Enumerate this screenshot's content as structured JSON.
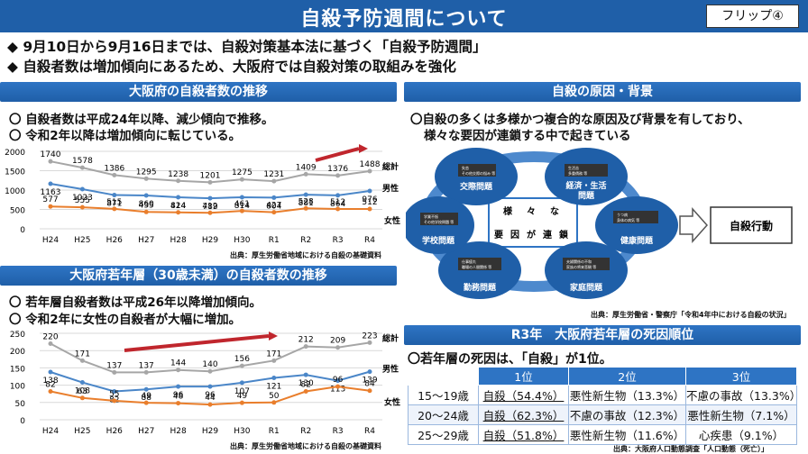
{
  "title": "自殺予防週間について",
  "flip_label": "フリップ④",
  "bullets": [
    "◆ 9月10日から9月16日までは、自殺対策基本法に基づく「自殺予防週間」",
    "◆ 自殺者数は増加傾向にあるため、大阪府では自殺対策の取組みを強化"
  ],
  "left_top": {
    "header": "大阪府の自殺者数の推移",
    "notes": [
      "〇 自殺者数は平成24年以降、減少傾向で推移。",
      "〇 令和2年以降は増加傾向に転じている。"
    ],
    "source": "出典：厚生労働省地域における自殺の基礎資料"
  },
  "left_bottom": {
    "header": "大阪府若年層（30歳未満）の自殺者数の推移",
    "notes": [
      "〇 若年層自殺者数は平成26年以降増加傾向。",
      "〇 令和2年に女性の自殺者が大幅に増加。"
    ],
    "source": "出典：厚生労働省地域における自殺の基礎資料"
  },
  "right_top": {
    "header": "自殺の原因・背景",
    "text1": "〇自殺の多くは多様かつ複合的な原因及び背景を有しており、",
    "text2": "様々な要因が連鎖する中で起きている",
    "nodes": [
      {
        "label": "交際問題",
        "items": [
          "失恋",
          "その他交際の悩み 等"
        ]
      },
      {
        "label": "経済・生活問題",
        "items": [
          "生活苦",
          "多重債務 等"
        ]
      },
      {
        "label": "健康問題",
        "items": [
          "うつ病",
          "身体の病気 等"
        ]
      },
      {
        "label": "家庭問題",
        "items": [
          "夫婦関係の不和",
          "家族の将来悲観 等"
        ]
      },
      {
        "label": "勤務問題",
        "items": [
          "仕事疲れ",
          "職場の人間関係 等"
        ]
      },
      {
        "label": "学校問題",
        "items": [
          "学業不振",
          "その他学校問題 等"
        ]
      }
    ],
    "center_chars": [
      "様",
      "々",
      "な",
      "要",
      "因",
      "が",
      "連",
      "鎖"
    ],
    "result": "自殺行動",
    "source": "出典：厚生労働省・警察庁「令和4年中における自殺の状況」"
  },
  "right_bottom": {
    "header": "R3年　大阪府若年層の死因順位",
    "note_prefix": "〇若年層の死因は、",
    "note_em": "「自殺」が1位。",
    "columns": [
      "",
      "1位",
      "2位",
      "3位"
    ],
    "rows": [
      [
        "15～19歳",
        "自殺（54.4%）",
        "悪性新生物（13.3%）",
        "不慮の事故（13.3%）"
      ],
      [
        "20～24歳",
        "自殺（62.3%）",
        "不慮の事故（12.3%）",
        "悪性新生物（7.1%）"
      ],
      [
        "25～29歳",
        "自殺（51.8%）",
        "悪性新生物（11.6%）",
        "心疾患（9.1%）"
      ]
    ],
    "source": "出典：大阪府人口動態調査「人口動態（死亡）」"
  },
  "chart_data": [
    {
      "type": "line",
      "categories": [
        "H24",
        "H25",
        "H26",
        "H27",
        "H28",
        "H29",
        "H30",
        "R1",
        "R2",
        "R3",
        "R4"
      ],
      "ylim": [
        0,
        2000
      ],
      "yticks": [
        0,
        500,
        1000,
        1500,
        2000
      ],
      "series": [
        {
          "name": "総計",
          "color": "#a6a6a6",
          "values": [
            1740,
            1578,
            1386,
            1295,
            1238,
            1201,
            1275,
            1231,
            1409,
            1376,
            1488
          ]
        },
        {
          "name": "男性",
          "color": "#4a86c8",
          "values": [
            1163,
            1023,
            871,
            860,
            814,
            789,
            814,
            804,
            881,
            864,
            976
          ]
        },
        {
          "name": "女性",
          "color": "#e97e2c",
          "values": [
            577,
            555,
            515,
            435,
            424,
            412,
            461,
            427,
            528,
            512,
            512
          ]
        }
      ]
    },
    {
      "type": "line",
      "categories": [
        "H24",
        "H25",
        "H26",
        "H27",
        "H28",
        "H29",
        "H30",
        "R1",
        "R2",
        "R3",
        "R4"
      ],
      "ylim": [
        0,
        250
      ],
      "yticks": [
        0,
        50,
        100,
        150,
        200,
        250
      ],
      "series": [
        {
          "name": "総計",
          "color": "#a6a6a6",
          "values": [
            220,
            171,
            137,
            137,
            144,
            140,
            156,
            171,
            212,
            209,
            223
          ]
        },
        {
          "name": "男性",
          "color": "#4a86c8",
          "values": [
            138,
            108,
            82,
            88,
            96,
            96,
            107,
            121,
            130,
            113,
            139
          ]
        },
        {
          "name": "女性",
          "color": "#e97e2c",
          "values": [
            82,
            63,
            55,
            49,
            48,
            44,
            49,
            50,
            82,
            96,
            84
          ]
        }
      ]
    }
  ]
}
